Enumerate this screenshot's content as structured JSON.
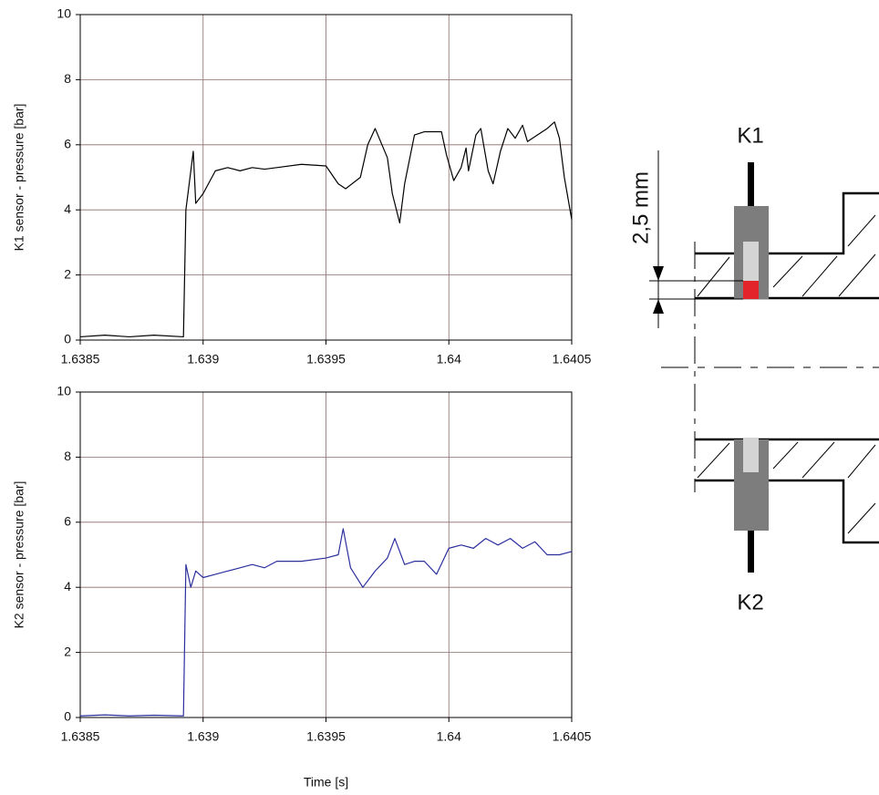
{
  "chart_data": [
    {
      "type": "line",
      "ylabel": "K1 sensor - pressure [bar]",
      "color": "#000000",
      "grid": true,
      "xlim": [
        1.6385,
        1.6405
      ],
      "xticks": [
        1.6385,
        1.639,
        1.6395,
        1.64,
        1.6405
      ],
      "ylim": [
        0,
        10
      ],
      "yticks": [
        0,
        2,
        4,
        6,
        8,
        10
      ],
      "x": [
        1.6385,
        1.6386,
        1.6387,
        1.6388,
        1.63892,
        1.63893,
        1.63896,
        1.63897,
        1.639,
        1.63905,
        1.6391,
        1.63915,
        1.6392,
        1.63925,
        1.6393,
        1.6394,
        1.6395,
        1.63955,
        1.63958,
        1.63964,
        1.63967,
        1.6397,
        1.63975,
        1.63977,
        1.6398,
        1.63982,
        1.63986,
        1.6399,
        1.63997,
        1.63999,
        1.64002,
        1.64005,
        1.64007,
        1.64008,
        1.64011,
        1.64013,
        1.64016,
        1.64018,
        1.64021,
        1.64024,
        1.64027,
        1.6403,
        1.64032,
        1.64036,
        1.6404,
        1.64043,
        1.64045,
        1.64047,
        1.6405
      ],
      "values": [
        0.1,
        0.15,
        0.1,
        0.15,
        0.1,
        4.0,
        5.8,
        4.2,
        4.5,
        5.2,
        5.3,
        5.2,
        5.3,
        5.25,
        5.3,
        5.4,
        5.35,
        4.8,
        4.65,
        5.0,
        6.0,
        6.5,
        5.6,
        4.5,
        3.6,
        4.8,
        6.3,
        6.4,
        6.4,
        5.7,
        4.9,
        5.3,
        5.9,
        5.2,
        6.3,
        6.5,
        5.2,
        4.8,
        5.8,
        6.5,
        6.2,
        6.6,
        6.1,
        6.3,
        6.5,
        6.7,
        6.2,
        5.0,
        3.7
      ]
    },
    {
      "type": "line",
      "ylabel": "K2 sensor - pressure [bar]",
      "xlabel": "Time [s]",
      "color": "#2b2f9e",
      "grid": true,
      "xlim": [
        1.6385,
        1.6405
      ],
      "xticks": [
        1.6385,
        1.639,
        1.6395,
        1.64,
        1.6405
      ],
      "ylim": [
        0,
        10
      ],
      "yticks": [
        0,
        2,
        4,
        6,
        8,
        10
      ],
      "x": [
        1.6385,
        1.6386,
        1.6387,
        1.6388,
        1.63892,
        1.63893,
        1.63895,
        1.63897,
        1.639,
        1.63905,
        1.6391,
        1.63915,
        1.6392,
        1.63925,
        1.6393,
        1.6394,
        1.6395,
        1.63955,
        1.63957,
        1.6396,
        1.63965,
        1.6397,
        1.63975,
        1.63978,
        1.63982,
        1.63986,
        1.6399,
        1.63995,
        1.64,
        1.64005,
        1.6401,
        1.64015,
        1.6402,
        1.64025,
        1.6403,
        1.64035,
        1.6404,
        1.64045,
        1.6405
      ],
      "values": [
        0.05,
        0.08,
        0.05,
        0.07,
        0.05,
        4.7,
        4.0,
        4.5,
        4.3,
        4.4,
        4.5,
        4.6,
        4.7,
        4.6,
        4.8,
        4.8,
        4.9,
        5.0,
        5.8,
        4.6,
        4.0,
        4.5,
        4.9,
        5.5,
        4.7,
        4.8,
        4.8,
        4.4,
        5.2,
        5.3,
        5.2,
        5.5,
        5.3,
        5.5,
        5.2,
        5.4,
        5.0,
        5.0,
        5.1
      ]
    }
  ],
  "diagram": {
    "labels": [
      "K1",
      "K2"
    ],
    "dimension": "2,5 mm"
  }
}
